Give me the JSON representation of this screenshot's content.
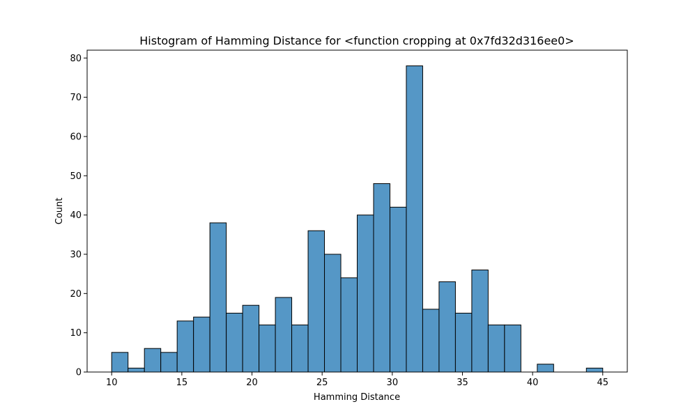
{
  "chart_data": {
    "type": "bar",
    "title": "Histogram of Hamming Distance for <function cropping at 0x7fd32d316ee0>",
    "xlabel": "Hamming Distance",
    "ylabel": "Count",
    "xlim": [
      8.25,
      46.75
    ],
    "ylim": [
      0,
      82
    ],
    "xticks": [
      10,
      15,
      20,
      25,
      30,
      35,
      40,
      45
    ],
    "yticks": [
      0,
      10,
      20,
      30,
      40,
      50,
      60,
      70,
      80
    ],
    "grid": false,
    "colors": {
      "bar_fill": "#5597c6",
      "bar_edge": "#000000"
    },
    "bins": [
      {
        "start": 10.0,
        "end": 11.1667,
        "value": 5
      },
      {
        "start": 11.1667,
        "end": 12.3333,
        "value": 1
      },
      {
        "start": 12.3333,
        "end": 13.5,
        "value": 6
      },
      {
        "start": 13.5,
        "end": 14.6667,
        "value": 5
      },
      {
        "start": 14.6667,
        "end": 15.8333,
        "value": 13
      },
      {
        "start": 15.8333,
        "end": 17.0,
        "value": 14
      },
      {
        "start": 17.0,
        "end": 18.1667,
        "value": 38
      },
      {
        "start": 18.1667,
        "end": 19.3333,
        "value": 15
      },
      {
        "start": 19.3333,
        "end": 20.5,
        "value": 17
      },
      {
        "start": 20.5,
        "end": 21.6667,
        "value": 12
      },
      {
        "start": 21.6667,
        "end": 22.8333,
        "value": 19
      },
      {
        "start": 22.8333,
        "end": 24.0,
        "value": 12
      },
      {
        "start": 24.0,
        "end": 25.1667,
        "value": 36
      },
      {
        "start": 25.1667,
        "end": 26.3333,
        "value": 30
      },
      {
        "start": 26.3333,
        "end": 27.5,
        "value": 24
      },
      {
        "start": 27.5,
        "end": 28.6667,
        "value": 40
      },
      {
        "start": 28.6667,
        "end": 29.8333,
        "value": 48
      },
      {
        "start": 29.8333,
        "end": 31.0,
        "value": 42
      },
      {
        "start": 31.0,
        "end": 32.1667,
        "value": 78
      },
      {
        "start": 32.1667,
        "end": 33.3333,
        "value": 16
      },
      {
        "start": 33.3333,
        "end": 34.5,
        "value": 23
      },
      {
        "start": 34.5,
        "end": 35.6667,
        "value": 15
      },
      {
        "start": 35.6667,
        "end": 36.8333,
        "value": 26
      },
      {
        "start": 36.8333,
        "end": 38.0,
        "value": 12
      },
      {
        "start": 38.0,
        "end": 39.1667,
        "value": 12
      },
      {
        "start": 39.1667,
        "end": 40.3333,
        "value": 0
      },
      {
        "start": 40.3333,
        "end": 41.5,
        "value": 2
      },
      {
        "start": 41.5,
        "end": 42.6667,
        "value": 0
      },
      {
        "start": 42.6667,
        "end": 43.8333,
        "value": 0
      },
      {
        "start": 43.8333,
        "end": 45.0,
        "value": 1
      }
    ]
  }
}
